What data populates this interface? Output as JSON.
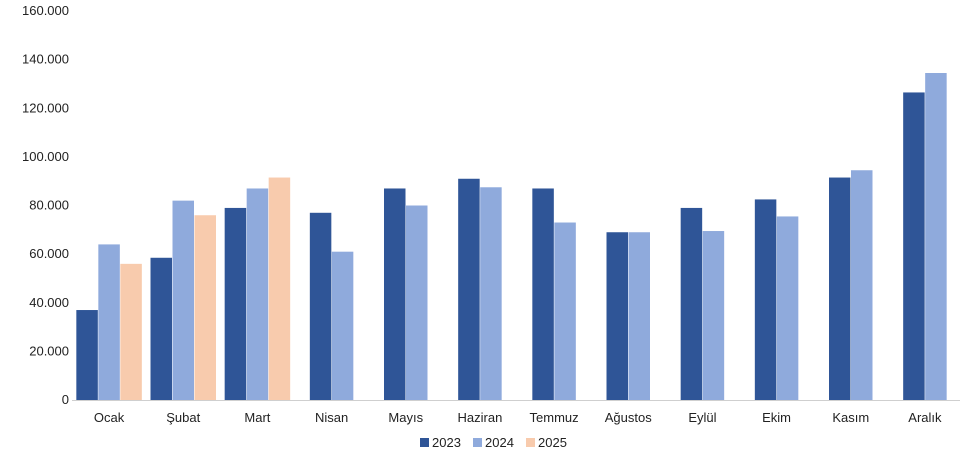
{
  "chart_data": {
    "type": "bar",
    "categories": [
      "Ocak",
      "Şubat",
      "Mart",
      "Nisan",
      "Mayıs",
      "Haziran",
      "Temmuz",
      "Ağustos",
      "Eylül",
      "Ekim",
      "Kasım",
      "Aralık"
    ],
    "series": [
      {
        "name": "2023",
        "color": "#2F5597",
        "values": [
          37000,
          58500,
          79000,
          77000,
          87000,
          91000,
          87000,
          69000,
          79000,
          82500,
          91500,
          126500
        ]
      },
      {
        "name": "2024",
        "color": "#8FAADC",
        "values": [
          64000,
          82000,
          87000,
          61000,
          80000,
          87500,
          73000,
          69000,
          69500,
          75500,
          94500,
          134500
        ]
      },
      {
        "name": "2025",
        "color": "#F8CBAD",
        "values": [
          56000,
          76000,
          91500,
          null,
          null,
          null,
          null,
          null,
          null,
          null,
          null,
          null
        ]
      }
    ],
    "ylim": [
      0,
      160000
    ],
    "yticks": [
      0,
      20000,
      40000,
      60000,
      80000,
      100000,
      120000,
      140000,
      160000
    ],
    "ytick_labels": [
      "0",
      "20.000",
      "40.000",
      "60.000",
      "80.000",
      "100.000",
      "120.000",
      "140.000",
      "160.000"
    ],
    "grid": false,
    "legend_position": "bottom-center"
  }
}
